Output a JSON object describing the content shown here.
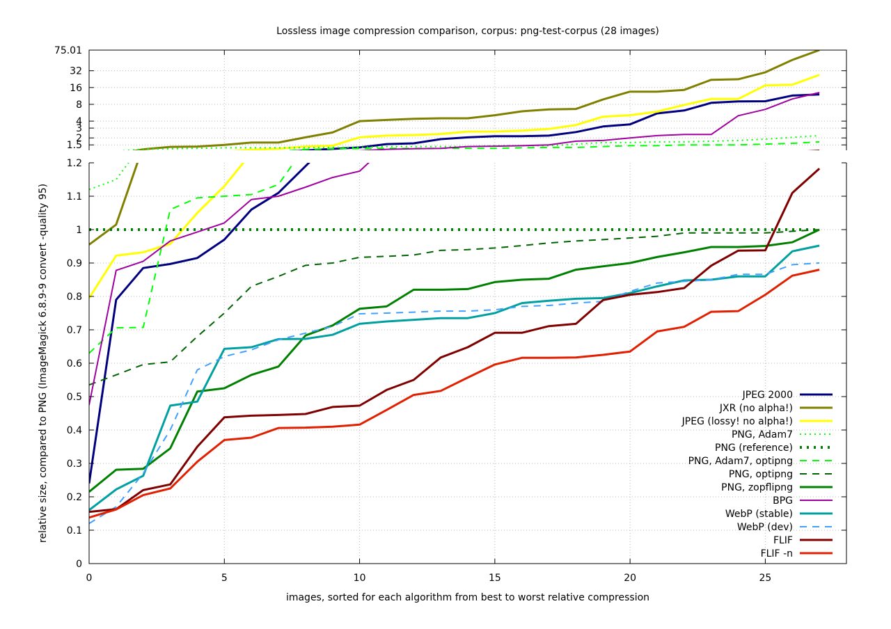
{
  "chart_data": {
    "type": "line",
    "title": "Lossless image compression comparison, corpus: png-test-corpus (28 images)",
    "xlabel": "images, sorted for each algorithm from best to worst relative compression",
    "ylabel": "relative size, compared to PNG (ImageMagick 6.8.9-9 convert -quality 95)",
    "xlim": [
      0,
      28
    ],
    "xticks": [
      0,
      5,
      10,
      15,
      20,
      25
    ],
    "grid": true,
    "legend_position": "bottom-right",
    "lower_panel": {
      "scale": "linear",
      "ylim": [
        0,
        1.2
      ],
      "yticks": [
        "0",
        "0.1",
        "0.2",
        "0.3",
        "0.4",
        "0.5",
        "0.6",
        "0.7",
        "0.8",
        "0.9",
        "1",
        "1.1",
        "1.2"
      ]
    },
    "upper_panel": {
      "scale": "log",
      "ylim": [
        1.2,
        75.01
      ],
      "yticks": [
        "1.5",
        "2",
        "3",
        "4",
        "8",
        "16",
        "32",
        "75.01"
      ]
    },
    "series": [
      {
        "name": "JPEG 2000",
        "color": "#00007f",
        "dash": "solid",
        "width": 3,
        "values": [
          0.24,
          0.79,
          0.885,
          0.897,
          0.915,
          0.97,
          1.06,
          1.11,
          1.19,
          1.27,
          1.35,
          1.55,
          1.6,
          1.9,
          2.05,
          2.15,
          2.15,
          2.2,
          2.55,
          3.2,
          3.5,
          5.5,
          6.2,
          8.5,
          9.0,
          9.1,
          11.5,
          12.0
        ]
      },
      {
        "name": "JXR (no alpha!)",
        "color": "#808000",
        "dash": "solid",
        "width": 3,
        "values": [
          0.955,
          1.015,
          1.25,
          1.38,
          1.4,
          1.5,
          1.65,
          1.65,
          2.05,
          2.5,
          4.0,
          4.2,
          4.4,
          4.5,
          4.5,
          5.1,
          6.0,
          6.5,
          6.6,
          9.8,
          13.5,
          13.5,
          14.5,
          22.0,
          22.5,
          30.0,
          50.0,
          75.0
        ]
      },
      {
        "name": "JPEG (lossy! no alpha!)",
        "color": "#ffff00",
        "dash": "solid",
        "width": 3,
        "values": [
          0.795,
          0.922,
          0.932,
          0.957,
          1.05,
          1.13,
          1.23,
          1.28,
          1.4,
          1.45,
          2.05,
          2.2,
          2.25,
          2.35,
          2.6,
          2.6,
          2.7,
          2.9,
          3.4,
          4.8,
          5.1,
          5.9,
          7.8,
          10.0,
          10.0,
          17.5,
          18.0,
          27.0
        ]
      },
      {
        "name": "PNG, Adam7",
        "color": "#00ff00",
        "dash": "dotted",
        "width": 2,
        "values": [
          1.12,
          1.15,
          1.26,
          1.28,
          1.3,
          1.33,
          1.33,
          1.33,
          1.33,
          1.35,
          1.35,
          1.4,
          1.4,
          1.4,
          1.4,
          1.45,
          1.45,
          1.45,
          1.55,
          1.65,
          1.65,
          1.7,
          1.7,
          1.75,
          1.8,
          1.9,
          2.05,
          2.2
        ]
      },
      {
        "name": "PNG (reference)",
        "color": "#008000",
        "dash": "dots",
        "width": 4,
        "values": [
          1,
          1,
          1,
          1,
          1,
          1,
          1,
          1,
          1,
          1,
          1,
          1,
          1,
          1,
          1,
          1,
          1,
          1,
          1,
          1,
          1,
          1,
          1,
          1,
          1,
          1,
          1,
          1
        ]
      },
      {
        "name": "PNG, Adam7, optipng",
        "color": "#00ff00",
        "dash": "dashed",
        "width": 2,
        "values": [
          0.63,
          0.706,
          0.707,
          1.06,
          1.095,
          1.1,
          1.105,
          1.135,
          1.25,
          1.28,
          1.29,
          1.3,
          1.3,
          1.3,
          1.3,
          1.3,
          1.33,
          1.35,
          1.35,
          1.4,
          1.45,
          1.45,
          1.5,
          1.5,
          1.5,
          1.55,
          1.6,
          1.7
        ]
      },
      {
        "name": "PNG, optipng",
        "color": "#006400",
        "dash": "dashed",
        "width": 2,
        "values": [
          0.535,
          0.565,
          0.596,
          0.604,
          0.68,
          0.75,
          0.83,
          0.86,
          0.893,
          0.9,
          0.917,
          0.92,
          0.924,
          0.938,
          0.94,
          0.945,
          0.952,
          0.96,
          0.966,
          0.97,
          0.975,
          0.98,
          0.99,
          0.99,
          0.99,
          0.99,
          0.995,
          1.0
        ]
      },
      {
        "name": "PNG, zopflipng",
        "color": "#008000",
        "dash": "solid",
        "width": 3,
        "values": [
          0.215,
          0.281,
          0.284,
          0.345,
          0.515,
          0.525,
          0.565,
          0.59,
          0.683,
          0.713,
          0.763,
          0.77,
          0.82,
          0.82,
          0.822,
          0.843,
          0.85,
          0.853,
          0.88,
          0.89,
          0.9,
          0.918,
          0.932,
          0.948,
          0.948,
          0.951,
          0.962,
          1.0
        ]
      },
      {
        "name": "BPG",
        "color": "#a000a0",
        "dash": "solid",
        "width": 2,
        "values": [
          0.475,
          0.878,
          0.905,
          0.966,
          0.993,
          1.02,
          1.09,
          1.1,
          1.127,
          1.156,
          1.175,
          1.25,
          1.28,
          1.3,
          1.4,
          1.42,
          1.45,
          1.5,
          1.75,
          1.8,
          2.0,
          2.2,
          2.3,
          2.3,
          5.0,
          6.5,
          10.0,
          13.0
        ]
      },
      {
        "name": "WebP (stable)",
        "color": "#00a0a0",
        "dash": "solid",
        "width": 3,
        "values": [
          0.16,
          0.222,
          0.263,
          0.473,
          0.485,
          0.643,
          0.648,
          0.672,
          0.673,
          0.685,
          0.718,
          0.725,
          0.73,
          0.735,
          0.735,
          0.75,
          0.78,
          0.787,
          0.793,
          0.795,
          0.81,
          0.83,
          0.848,
          0.85,
          0.86,
          0.86,
          0.935,
          0.952
        ]
      },
      {
        "name": "WebP (dev)",
        "color": "#40a0ff",
        "dash": "dashed",
        "width": 2,
        "values": [
          0.12,
          0.17,
          0.27,
          0.4,
          0.58,
          0.62,
          0.64,
          0.67,
          0.69,
          0.71,
          0.748,
          0.75,
          0.753,
          0.756,
          0.756,
          0.76,
          0.77,
          0.773,
          0.78,
          0.785,
          0.815,
          0.84,
          0.845,
          0.85,
          0.866,
          0.866,
          0.895,
          0.9
        ]
      },
      {
        "name": "FLIF",
        "color": "#800000",
        "dash": "solid",
        "width": 3,
        "values": [
          0.155,
          0.163,
          0.22,
          0.237,
          0.35,
          0.438,
          0.443,
          0.445,
          0.448,
          0.469,
          0.473,
          0.52,
          0.55,
          0.617,
          0.648,
          0.691,
          0.691,
          0.711,
          0.718,
          0.789,
          0.805,
          0.813,
          0.825,
          0.892,
          0.937,
          0.938,
          1.11,
          1.183
        ]
      },
      {
        "name": "FLIF -n",
        "color": "#e02000",
        "dash": "solid",
        "width": 3,
        "values": [
          0.138,
          0.162,
          0.205,
          0.225,
          0.305,
          0.37,
          0.377,
          0.406,
          0.407,
          0.41,
          0.416,
          0.46,
          0.505,
          0.517,
          0.557,
          0.596,
          0.616,
          0.616,
          0.617,
          0.625,
          0.635,
          0.695,
          0.709,
          0.754,
          0.756,
          0.805,
          0.862,
          0.88
        ]
      }
    ]
  }
}
